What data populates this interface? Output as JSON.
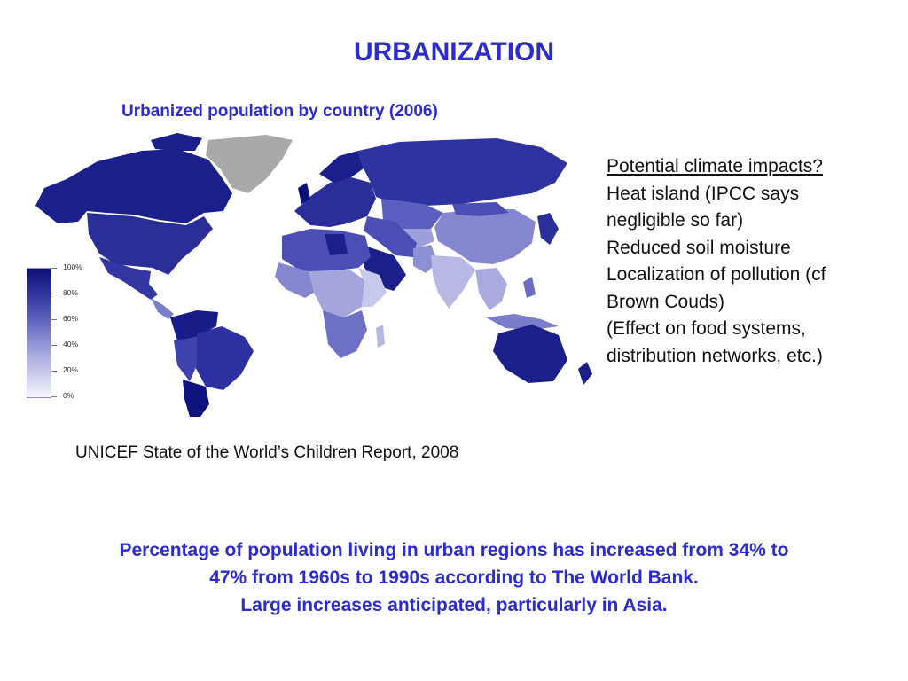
{
  "title": "URBANIZATION",
  "map": {
    "subtitle": "Urbanized population by country (2006)",
    "legend_ticks": [
      "100%",
      "80%",
      "60%",
      "40%",
      "20%",
      "0%"
    ],
    "colors": {
      "high": "#0a0e75",
      "mid": "#6d70c4",
      "low": "#f6f6fb",
      "no_data": "#a9a9a9"
    }
  },
  "side": {
    "heading": "Potential climate impacts?",
    "lines": [
      "Heat island (IPCC says",
      "negligible so far)",
      "Reduced soil moisture",
      "Localization of pollution (cf",
      "Brown Couds)",
      "(Effect on food systems,",
      "distribution networks, etc.)"
    ]
  },
  "source": "UNICEF State of the World’s Children Report, 2008",
  "bottom": {
    "line1": "Percentage of population living in urban regions has increased from 34% to",
    "line2": "47% from 1960s to 1990s according to The World Bank.",
    "line3": "Large increases anticipated, particularly in Asia."
  }
}
